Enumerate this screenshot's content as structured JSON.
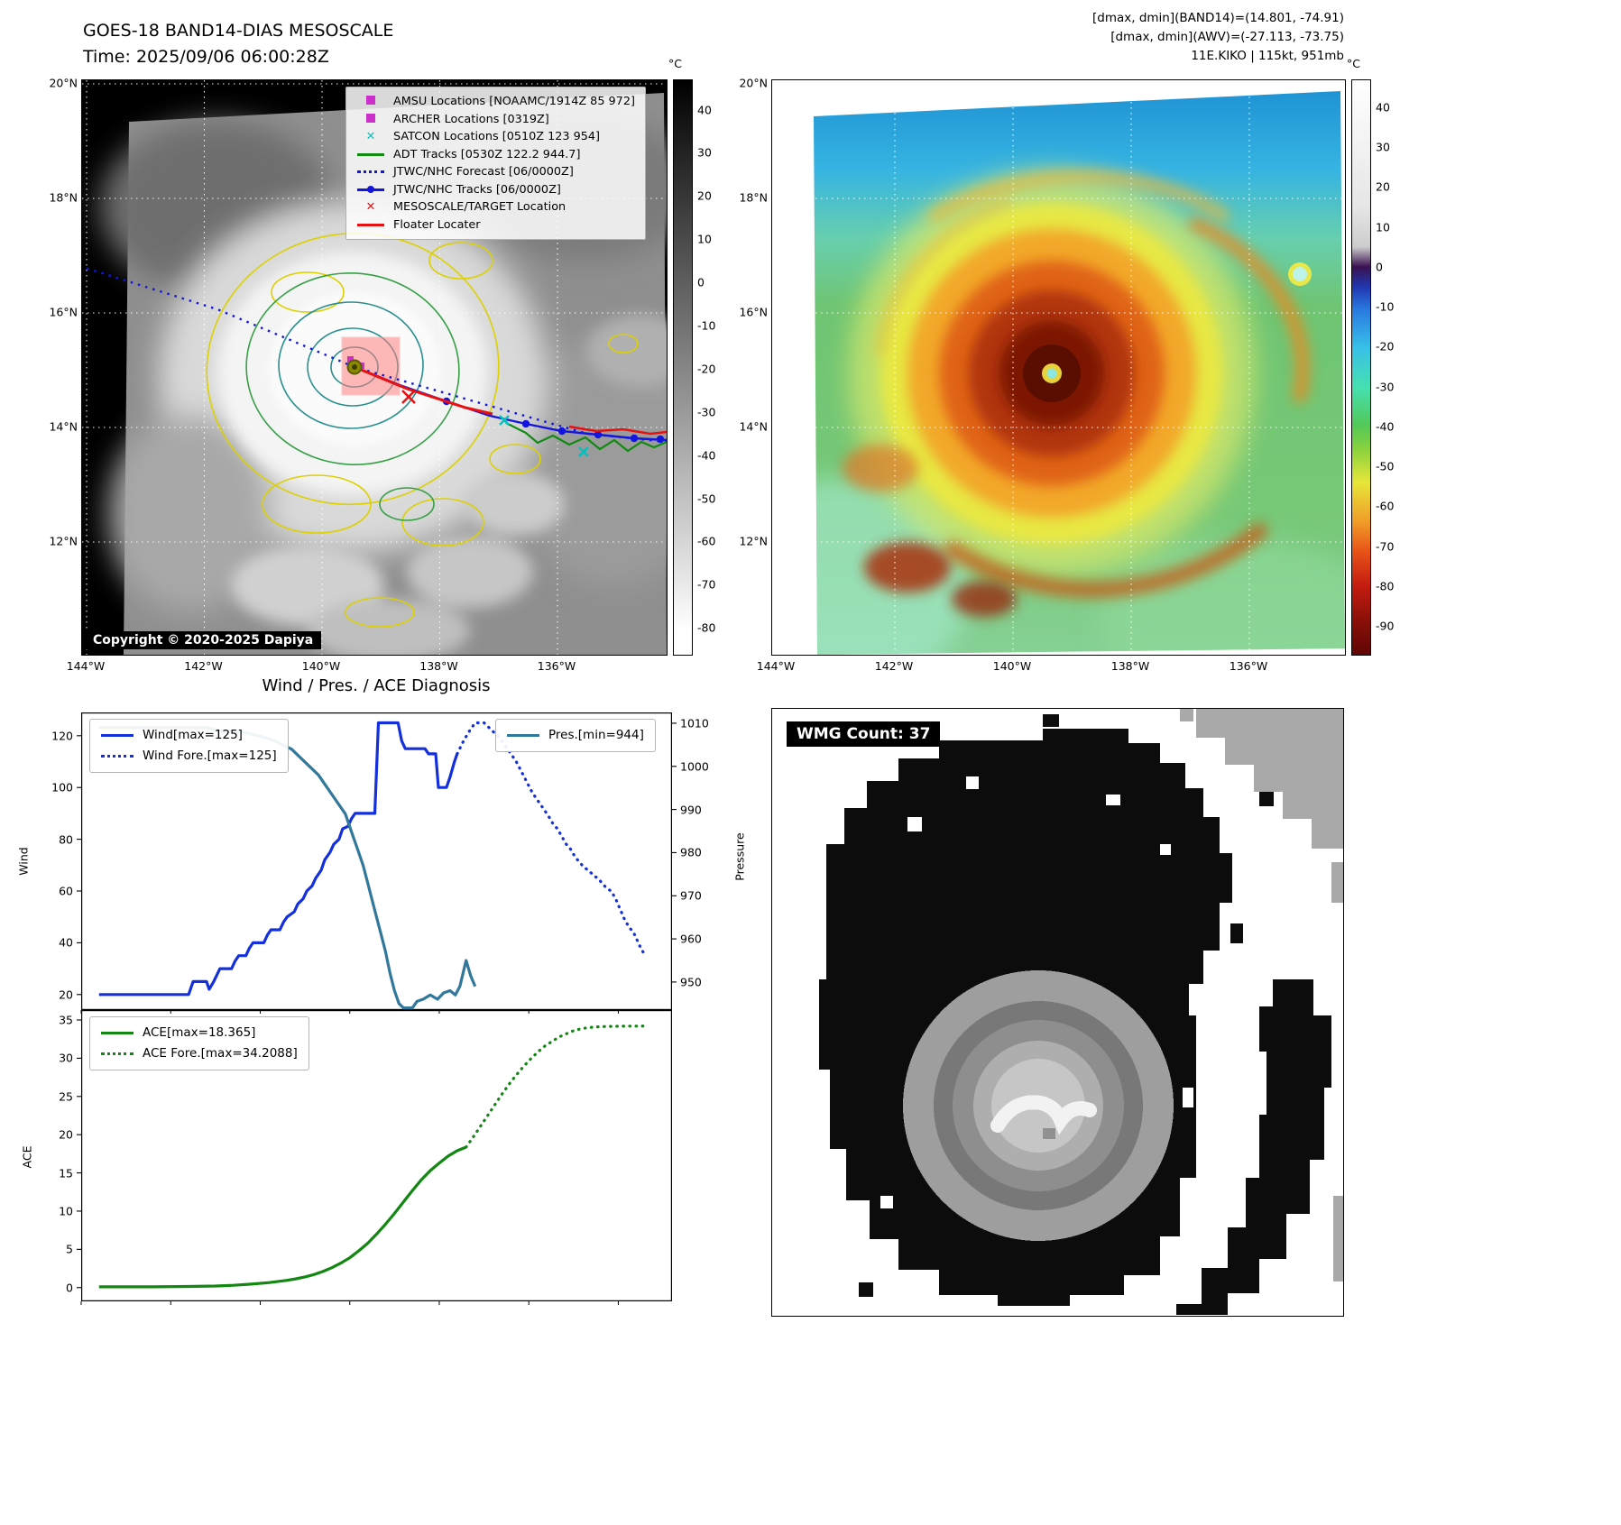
{
  "header": {
    "line1": "[dmax, dmin](BAND14)=(14.801, -74.91)",
    "line2": "[dmax, dmin](AWV)=(-27.113, -73.75)",
    "line3": "11E.KIKO | 115kt, 951mb"
  },
  "ir_bw": {
    "title": "GOES-18 BAND14-DIAS MESOSCALE",
    "time_line": "Time: 2025/09/06 06:00:28Z",
    "copyright": "Copyright © 2020-2025 Dapiya",
    "lat_labels": [
      "20°N",
      "18°N",
      "16°N",
      "14°N",
      "12°N"
    ],
    "lon_labels": [
      "144°W",
      "142°W",
      "140°W",
      "138°W",
      "136°W"
    ],
    "colorbar": {
      "unit": "°C",
      "vmax": 47,
      "vmin": -86,
      "ticks": [
        40,
        30,
        20,
        10,
        0,
        -10,
        -20,
        -30,
        -40,
        -50,
        -60,
        -70,
        -80
      ]
    },
    "legend": [
      {
        "marker": "square",
        "color": "#cc2fcc",
        "label": "AMSU Locations [NOAAMC/1914Z 85 972]"
      },
      {
        "marker": "square",
        "color": "#cc2fcc",
        "label": "ARCHER Locations [0319Z]"
      },
      {
        "marker": "x",
        "color": "#00c2c2",
        "label": "SATCON Locations [0510Z 123 954]"
      },
      {
        "marker": "line",
        "color": "#108a10",
        "label": "ADT Tracks [0530Z 122.2 944.7]"
      },
      {
        "marker": "dotted",
        "color": "#1515e0",
        "label": "JTWC/NHC Forecast [06/0000Z]"
      },
      {
        "marker": "line-dot",
        "color": "#1515e0",
        "label": "JTWC/NHC Tracks [06/0000Z]"
      },
      {
        "marker": "x",
        "color": "#e81010",
        "label": "MESOSCALE/TARGET Location"
      },
      {
        "marker": "line",
        "color": "#e81010",
        "label": "Floater Locater"
      }
    ]
  },
  "ir_color": {
    "lat_labels": [
      "20°N",
      "18°N",
      "16°N",
      "14°N",
      "12°N"
    ],
    "lon_labels": [
      "144°W",
      "142°W",
      "140°W",
      "138°W",
      "136°W"
    ],
    "colorbar": {
      "unit": "°C",
      "vmax": 47,
      "vmin": -97,
      "ticks": [
        40,
        30,
        20,
        10,
        0,
        -10,
        -20,
        -30,
        -40,
        -50,
        -60,
        -70,
        -80,
        -90
      ]
    }
  },
  "diagnosis": {
    "title": "Wind / Pres. / ACE Diagnosis"
  },
  "chart_data": [
    {
      "type": "line",
      "panel": "wind_pressure",
      "ylabel_left": "Wind",
      "ylabel_right": "Pressure",
      "x_range": [
        0,
        66
      ],
      "y_left": {
        "range": [
          14,
          129
        ],
        "ticks": [
          20,
          40,
          60,
          80,
          100,
          120
        ]
      },
      "y_right": {
        "range": [
          943.5,
          1012.5
        ],
        "ticks": [
          950,
          960,
          970,
          980,
          990,
          1000,
          1010
        ]
      },
      "series": [
        {
          "name": "Wind[max=125]",
          "axis": "left",
          "color": "#1430dd",
          "dash": false,
          "points": [
            [
              2,
              20
            ],
            [
              6,
              20
            ],
            [
              9,
              20
            ],
            [
              12,
              20
            ],
            [
              12.5,
              25
            ],
            [
              14,
              25
            ],
            [
              14.3,
              22
            ],
            [
              14.8,
              25
            ],
            [
              15.5,
              30
            ],
            [
              16.8,
              30
            ],
            [
              17.2,
              33
            ],
            [
              17.6,
              35
            ],
            [
              18.4,
              35
            ],
            [
              18.8,
              38
            ],
            [
              19.2,
              40
            ],
            [
              20.4,
              40
            ],
            [
              20.8,
              43
            ],
            [
              21.2,
              45
            ],
            [
              22.2,
              45
            ],
            [
              22.6,
              48
            ],
            [
              23,
              50
            ],
            [
              23.8,
              52
            ],
            [
              24.2,
              55
            ],
            [
              24.8,
              57
            ],
            [
              25.2,
              60
            ],
            [
              25.8,
              62
            ],
            [
              26.2,
              65
            ],
            [
              26.8,
              68
            ],
            [
              27.2,
              72
            ],
            [
              27.8,
              75
            ],
            [
              28.2,
              78
            ],
            [
              28.8,
              80
            ],
            [
              29.2,
              84
            ],
            [
              29.8,
              85
            ],
            [
              30.2,
              88
            ],
            [
              30.6,
              90
            ],
            [
              32.8,
              90
            ],
            [
              33.2,
              125
            ],
            [
              35.4,
              125
            ],
            [
              35.8,
              118
            ],
            [
              36.2,
              115
            ],
            [
              38.4,
              115
            ],
            [
              38.8,
              113
            ],
            [
              39.6,
              113
            ],
            [
              39.9,
              100
            ],
            [
              40.8,
              100
            ],
            [
              41.2,
              104
            ],
            [
              41.7,
              110
            ],
            [
              42,
              113
            ]
          ]
        },
        {
          "name": "Wind Fore.[max=125]",
          "axis": "left",
          "color": "#1430dd",
          "dash": true,
          "points": [
            [
              42,
              113
            ],
            [
              42.7,
              118
            ],
            [
              43.4,
              122
            ],
            [
              44,
              125
            ],
            [
              45,
              125
            ],
            [
              45.6,
              123
            ],
            [
              46.2,
              121
            ],
            [
              46.8,
              119
            ],
            [
              47.4,
              116
            ],
            [
              48,
              113
            ],
            [
              48.6,
              110
            ],
            [
              49.2,
              106
            ],
            [
              49.8,
              102
            ],
            [
              50.4,
              98
            ],
            [
              51,
              95
            ],
            [
              51.6,
              92
            ],
            [
              52.2,
              89
            ],
            [
              52.7,
              86
            ],
            [
              53.2,
              84
            ],
            [
              53.7,
              81
            ],
            [
              54.2,
              78
            ],
            [
              54.7,
              76
            ],
            [
              55.2,
              73
            ],
            [
              55.7,
              71
            ],
            [
              56.2,
              69
            ],
            [
              56.7,
              68
            ],
            [
              57.2,
              66
            ],
            [
              57.7,
              65
            ],
            [
              58.2,
              63
            ],
            [
              58.7,
              61
            ],
            [
              59.2,
              60
            ],
            [
              59.7,
              57
            ],
            [
              60.2,
              53
            ],
            [
              60.7,
              49
            ],
            [
              61.2,
              46
            ],
            [
              61.7,
              44
            ],
            [
              62.1,
              41
            ],
            [
              62.5,
              38
            ],
            [
              63,
              35
            ]
          ]
        },
        {
          "name": "Pres.[min=944]",
          "axis": "right",
          "color": "#31789b",
          "dash": false,
          "points": [
            [
              2,
              1009
            ],
            [
              7,
              1009
            ],
            [
              12,
              1009
            ],
            [
              14,
              1009
            ],
            [
              16,
              1008
            ],
            [
              18,
              1008
            ],
            [
              20,
              1007
            ],
            [
              21.5,
              1006
            ],
            [
              22.5,
              1005
            ],
            [
              23.5,
              1004
            ],
            [
              24.5,
              1002
            ],
            [
              25.5,
              1000
            ],
            [
              26.5,
              998
            ],
            [
              27.5,
              995
            ],
            [
              28.5,
              992
            ],
            [
              29.5,
              989
            ],
            [
              30,
              986
            ],
            [
              30.5,
              983
            ],
            [
              31,
              980
            ],
            [
              31.5,
              977
            ],
            [
              32,
              973
            ],
            [
              32.5,
              969
            ],
            [
              33,
              965
            ],
            [
              33.5,
              961
            ],
            [
              34,
              957
            ],
            [
              34.5,
              952
            ],
            [
              35,
              948
            ],
            [
              35.5,
              945
            ],
            [
              36,
              944
            ],
            [
              37,
              944
            ],
            [
              37.5,
              945.5
            ],
            [
              38.2,
              946
            ],
            [
              39,
              947
            ],
            [
              39.8,
              946
            ],
            [
              40.5,
              947.5
            ],
            [
              41.2,
              948
            ],
            [
              41.8,
              947
            ],
            [
              42.3,
              949
            ],
            [
              43,
              955
            ],
            [
              43.5,
              951.5
            ],
            [
              44,
              949
            ]
          ]
        }
      ]
    },
    {
      "type": "line",
      "panel": "ace",
      "ylabel_left": "ACE",
      "x_range": [
        0,
        66
      ],
      "y_left": {
        "range": [
          -1.8,
          36.3
        ],
        "ticks": [
          0,
          5,
          10,
          15,
          20,
          25,
          30,
          35
        ]
      },
      "series": [
        {
          "name": "ACE[max=18.365]",
          "axis": "left",
          "color": "#128712",
          "dash": false,
          "points": [
            [
              2,
              0.1
            ],
            [
              8,
              0.1
            ],
            [
              12,
              0.15
            ],
            [
              15,
              0.2
            ],
            [
              17,
              0.3
            ],
            [
              19,
              0.45
            ],
            [
              21,
              0.65
            ],
            [
              23,
              0.95
            ],
            [
              24,
              1.15
            ],
            [
              25,
              1.4
            ],
            [
              26,
              1.7
            ],
            [
              27,
              2.1
            ],
            [
              28,
              2.6
            ],
            [
              29,
              3.2
            ],
            [
              30,
              3.9
            ],
            [
              31,
              4.8
            ],
            [
              32,
              5.8
            ],
            [
              33,
              7.0
            ],
            [
              34,
              8.3
            ],
            [
              35,
              9.7
            ],
            [
              36,
              11.2
            ],
            [
              37,
              12.7
            ],
            [
              38,
              14.1
            ],
            [
              39,
              15.3
            ],
            [
              40,
              16.3
            ],
            [
              41,
              17.2
            ],
            [
              42,
              17.9
            ],
            [
              43,
              18.365
            ]
          ]
        },
        {
          "name": "ACE Fore.[max=34.2088]",
          "axis": "left",
          "color": "#128712",
          "dash": true,
          "points": [
            [
              43,
              18.365
            ],
            [
              43.8,
              19.7
            ],
            [
              44.6,
              21.1
            ],
            [
              45.4,
              22.5
            ],
            [
              46.2,
              23.9
            ],
            [
              47,
              25.3
            ],
            [
              47.8,
              26.6
            ],
            [
              48.6,
              27.8
            ],
            [
              49.4,
              28.9
            ],
            [
              50.2,
              29.9
            ],
            [
              51,
              30.8
            ],
            [
              51.8,
              31.6
            ],
            [
              52.6,
              32.2
            ],
            [
              53.4,
              32.8
            ],
            [
              54.2,
              33.2
            ],
            [
              55,
              33.6
            ],
            [
              55.8,
              33.85
            ],
            [
              56.6,
              34.0
            ],
            [
              57.6,
              34.1
            ],
            [
              58.6,
              34.15
            ],
            [
              59.8,
              34.18
            ],
            [
              61,
              34.2
            ],
            [
              62,
              34.2
            ],
            [
              63,
              34.2088
            ]
          ]
        }
      ]
    }
  ],
  "wmg": {
    "label": "WMG Count: 37"
  }
}
